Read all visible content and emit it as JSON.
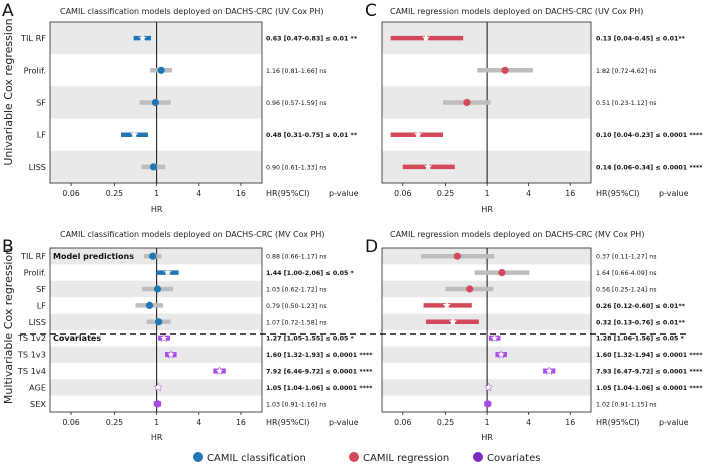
{
  "colors": {
    "classification": "#1f78b4",
    "regression": "#d1495b",
    "covariates": "#7b2cbf",
    "covariate_point": "#a64ce0",
    "ci_grey": "#bdbdbd"
  },
  "y_titles": {
    "univariable": "Univariable Cox regression",
    "multivariable": "Multivariable Cox regression"
  },
  "legend": [
    {
      "label": "CAMIL classification",
      "color": "#1f78b4",
      "icon": "circle-marker-icon"
    },
    {
      "label": "CAMIL regression",
      "color": "#d1495b",
      "icon": "circle-marker-icon"
    },
    {
      "label": "Covariates",
      "color": "#7b2cbf",
      "icon": "circle-marker-icon"
    }
  ],
  "chart_data": [
    {
      "panel": "A",
      "type": "forest",
      "title": "CAMIL classification models deployed on DACHS-CRC (UV Cox PH)",
      "xlabel": "HR",
      "xscale": "log",
      "xticks": [
        0.06,
        0.25,
        1,
        4,
        16
      ],
      "xtick_labels": [
        "0.06",
        "0.25",
        "1",
        "4",
        "16"
      ],
      "xlim": [
        0.03,
        32
      ],
      "annotation_header": [
        "HR(95%CI)",
        "p-value"
      ],
      "rows": [
        {
          "label": "TIL RF",
          "hr": 0.63,
          "lo": 0.47,
          "hi": 0.83,
          "group": "model",
          "highlight": true,
          "annotation": "0.63 [0.47-0.83] ≤ 0.01 **"
        },
        {
          "label": "Prolif.",
          "hr": 1.16,
          "lo": 0.81,
          "hi": 1.66,
          "group": "model",
          "highlight": false,
          "annotation": "1.16 [0.81-1.66] ns"
        },
        {
          "label": "SF",
          "hr": 0.96,
          "lo": 0.57,
          "hi": 1.59,
          "group": "model",
          "highlight": false,
          "annotation": "0.96 [0.57-1.59] ns"
        },
        {
          "label": "LF",
          "hr": 0.48,
          "lo": 0.31,
          "hi": 0.75,
          "group": "model",
          "highlight": true,
          "annotation": "0.48 [0.31-0.75] ≤ 0.01 **"
        },
        {
          "label": "LISS",
          "hr": 0.9,
          "lo": 0.61,
          "hi": 1.33,
          "group": "model",
          "highlight": false,
          "annotation": "0.90 [0.61-1.33] ns"
        }
      ]
    },
    {
      "panel": "C",
      "type": "forest",
      "title": "CAMIL regression models deployed on DACHS-CRC (UV Cox PH)",
      "xlabel": "HR",
      "xscale": "log",
      "xticks": [
        0.06,
        0.25,
        1,
        4,
        16
      ],
      "xtick_labels": [
        "0.06",
        "0.25",
        "1",
        "4",
        "16"
      ],
      "xlim": [
        0.03,
        32
      ],
      "annotation_header": [
        "HR(95%CI)",
        "p-value"
      ],
      "rows": [
        {
          "label": "TIL RF",
          "hr": 0.13,
          "lo": 0.04,
          "hi": 0.45,
          "group": "model",
          "highlight": true,
          "annotation": "0.13 [0.04-0.45] ≤ 0.01**"
        },
        {
          "label": "Prolif.",
          "hr": 1.82,
          "lo": 0.72,
          "hi": 4.62,
          "group": "model",
          "highlight": false,
          "annotation": "1.82 [0.72-4.62] ns"
        },
        {
          "label": "SF",
          "hr": 0.51,
          "lo": 0.23,
          "hi": 1.12,
          "group": "model",
          "highlight": false,
          "annotation": "0.51 [0.23-1.12] ns"
        },
        {
          "label": "LF",
          "hr": 0.1,
          "lo": 0.04,
          "hi": 0.23,
          "group": "model",
          "highlight": true,
          "annotation": "0.10 [0.04-0.23] ≤ 0.0001 ****"
        },
        {
          "label": "LISS",
          "hr": 0.14,
          "lo": 0.06,
          "hi": 0.34,
          "group": "model",
          "highlight": true,
          "annotation": "0.14 [0.06-0.34] ≤ 0.0001 ****"
        }
      ]
    },
    {
      "panel": "B",
      "type": "forest",
      "title": "CAMIL classification models deployed on DACHS-CRC (MV Cox PH)",
      "xlabel": "HR",
      "xscale": "log",
      "xticks": [
        0.06,
        0.25,
        1,
        4,
        16
      ],
      "xtick_labels": [
        "0.06",
        "0.25",
        "1",
        "4",
        "16"
      ],
      "xlim": [
        0.03,
        32
      ],
      "annotation_header": [
        "HR(95%CI)",
        "p-value"
      ],
      "section_labels": {
        "model": "Model predictions",
        "covariate": "Covariates"
      },
      "rows": [
        {
          "label": "TIL RF",
          "hr": 0.88,
          "lo": 0.66,
          "hi": 1.17,
          "group": "model",
          "highlight": false,
          "annotation": "0.88 [0.66-1.17] ns"
        },
        {
          "label": "Prolif.",
          "hr": 1.44,
          "lo": 1.0,
          "hi": 2.06,
          "group": "model",
          "highlight": true,
          "annotation": "1.44 [1.00-2.06] ≤ 0.05 *"
        },
        {
          "label": "SF",
          "hr": 1.03,
          "lo": 0.62,
          "hi": 1.72,
          "group": "model",
          "highlight": false,
          "annotation": "1.03 [0.62-1.72] ns"
        },
        {
          "label": "LF",
          "hr": 0.79,
          "lo": 0.5,
          "hi": 1.23,
          "group": "model",
          "highlight": false,
          "annotation": "0.79 [0.50-1.23] ns"
        },
        {
          "label": "LISS",
          "hr": 1.07,
          "lo": 0.72,
          "hi": 1.58,
          "group": "model",
          "highlight": false,
          "annotation": "1.07 [0.72-1.58] ns"
        },
        {
          "label": "TS 1v2",
          "hr": 1.27,
          "lo": 1.05,
          "hi": 1.55,
          "group": "covariate",
          "highlight": true,
          "annotation": "1.27 [1.05-1.55] ≤ 0.05 *"
        },
        {
          "label": "TS 1v3",
          "hr": 1.6,
          "lo": 1.32,
          "hi": 1.93,
          "group": "covariate",
          "highlight": true,
          "annotation": "1.60 [1.32-1.93] ≤ 0.0001 ****"
        },
        {
          "label": "TS 1v4",
          "hr": 7.92,
          "lo": 6.46,
          "hi": 9.72,
          "group": "covariate",
          "highlight": true,
          "annotation": "7.92 [6.46-9.72] ≤ 0.0001 ****"
        },
        {
          "label": "AGE",
          "hr": 1.05,
          "lo": 1.04,
          "hi": 1.06,
          "group": "covariate",
          "highlight": true,
          "annotation": "1.05 [1.04-1.06] ≤ 0.0001 ****"
        },
        {
          "label": "SEX",
          "hr": 1.03,
          "lo": 0.91,
          "hi": 1.16,
          "group": "covariate",
          "highlight": false,
          "annotation": "1.03 [0.91-1.16] ns"
        }
      ]
    },
    {
      "panel": "D",
      "type": "forest",
      "title": "CAMIL regression models deployed on DACHS-CRC (MV Cox PH)",
      "xlabel": "HR",
      "xscale": "log",
      "xticks": [
        0.06,
        0.25,
        1,
        4,
        16
      ],
      "xtick_labels": [
        "0.06",
        "0.25",
        "1",
        "4",
        "16"
      ],
      "xlim": [
        0.03,
        32
      ],
      "annotation_header": [
        "HR(95%CI)",
        "p-value"
      ],
      "rows": [
        {
          "label": "TIL RF",
          "hr": 0.37,
          "lo": 0.11,
          "hi": 1.27,
          "group": "model",
          "highlight": false,
          "annotation": "0.37 [0.11-1.27] ns"
        },
        {
          "label": "Prolif.",
          "hr": 1.64,
          "lo": 0.66,
          "hi": 4.09,
          "group": "model",
          "highlight": false,
          "annotation": "1.64 [0.66-4.09] ns"
        },
        {
          "label": "SF",
          "hr": 0.56,
          "lo": 0.25,
          "hi": 1.24,
          "group": "model",
          "highlight": false,
          "annotation": "0.56 [0.25-1.24] ns"
        },
        {
          "label": "LF",
          "hr": 0.26,
          "lo": 0.12,
          "hi": 0.6,
          "group": "model",
          "highlight": true,
          "annotation": "0.26 [0.12-0.60] ≤ 0.01**"
        },
        {
          "label": "LISS",
          "hr": 0.32,
          "lo": 0.13,
          "hi": 0.76,
          "group": "model",
          "highlight": true,
          "annotation": "0.32 [0.13-0.76] ≤ 0.01**"
        },
        {
          "label": "TS 1v2",
          "hr": 1.28,
          "lo": 1.06,
          "hi": 1.56,
          "group": "covariate",
          "highlight": true,
          "annotation": "1.28 [1.06-1.56] ≤ 0.05 *"
        },
        {
          "label": "TS 1v3",
          "hr": 1.6,
          "lo": 1.32,
          "hi": 1.94,
          "group": "covariate",
          "highlight": true,
          "annotation": "1.60 [1.32-1.94] ≤ 0.0001 ****"
        },
        {
          "label": "TS 1v4",
          "hr": 7.93,
          "lo": 6.47,
          "hi": 9.72,
          "group": "covariate",
          "highlight": true,
          "annotation": "7.93 [6.47-9.72] ≤ 0.0001 ****"
        },
        {
          "label": "AGE",
          "hr": 1.05,
          "lo": 1.04,
          "hi": 1.06,
          "group": "covariate",
          "highlight": true,
          "annotation": "1.05 [1.04-1.06] ≤ 0.0001 ****"
        },
        {
          "label": "SEX",
          "hr": 1.02,
          "lo": 0.91,
          "hi": 1.15,
          "group": "covariate",
          "highlight": false,
          "annotation": "1.02 [0.91-1.15] ns"
        }
      ]
    }
  ]
}
